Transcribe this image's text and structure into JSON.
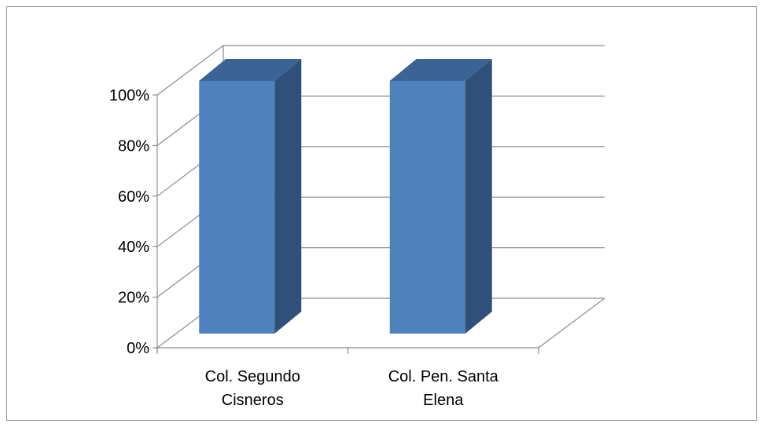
{
  "chart_data": {
    "type": "bar",
    "style": "3d-column",
    "categories": [
      [
        "Col. Segundo",
        "Cisneros"
      ],
      [
        "Col. Pen. Santa",
        "Elena"
      ]
    ],
    "values": [
      100,
      100
    ],
    "yticks": [
      "0%",
      "20%",
      "40%",
      "60%",
      "80%",
      "100%"
    ],
    "ylim": [
      0,
      100
    ],
    "grid": true,
    "legend": "none",
    "colors": {
      "bar_front": "#4f81bd",
      "bar_side": "#2f5078",
      "bar_top": "#3b6396",
      "grid": "#8c8c8c"
    }
  }
}
